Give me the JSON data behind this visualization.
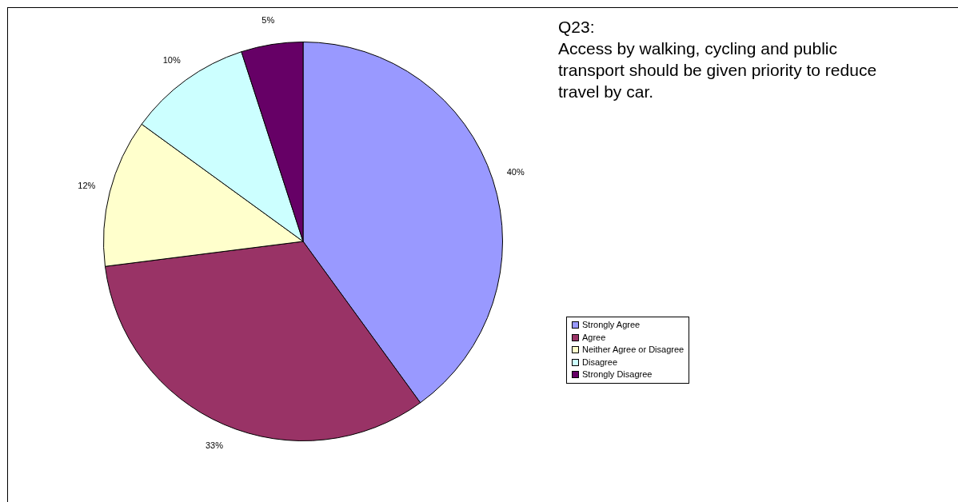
{
  "chart_data": {
    "type": "pie",
    "title": "Q23:",
    "subtitle": "Access by walking, cycling and public transport should be given priority to reduce travel by car.",
    "categories": [
      "Strongly Agree",
      "Agree",
      "Neither Agree or Disagree",
      "Disagree",
      "Strongly Disagree"
    ],
    "values": [
      40,
      33,
      12,
      10,
      5
    ],
    "colors": [
      "#9999ff",
      "#993366",
      "#ffffcc",
      "#ccffff",
      "#660066"
    ],
    "value_labels": [
      "40%",
      "33%",
      "12%",
      "10%",
      "5%"
    ],
    "legend": "right"
  }
}
